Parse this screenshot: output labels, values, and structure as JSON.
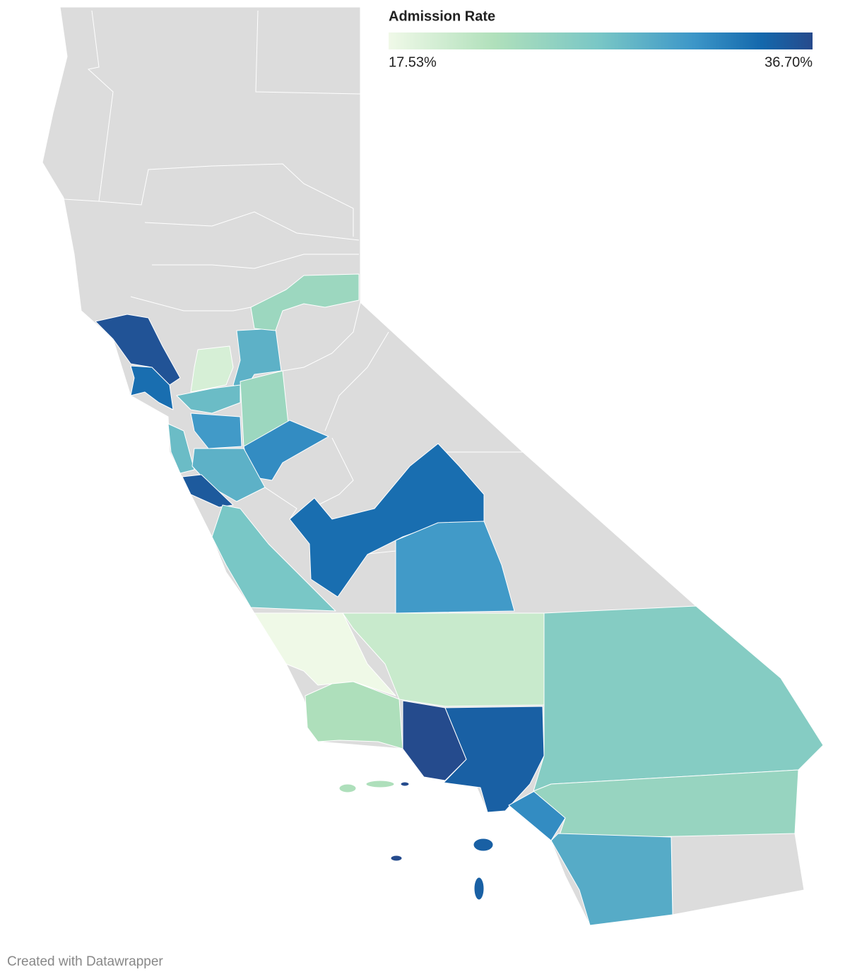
{
  "legend": {
    "title": "Admission Rate",
    "min": {
      "value": 17.53,
      "label": "17.53%"
    },
    "max": {
      "value": 36.7,
      "label": "36.70%"
    }
  },
  "regions": [
    36,
    34,
    19.5,
    29,
    24,
    24,
    28,
    31,
    32,
    28,
    29,
    35.5,
    27,
    34,
    31,
    17.6,
    20.5,
    22.5,
    36.6,
    35,
    26,
    32,
    24.5,
    29.5
  ],
  "footer": "Created with Datawrapper"
}
